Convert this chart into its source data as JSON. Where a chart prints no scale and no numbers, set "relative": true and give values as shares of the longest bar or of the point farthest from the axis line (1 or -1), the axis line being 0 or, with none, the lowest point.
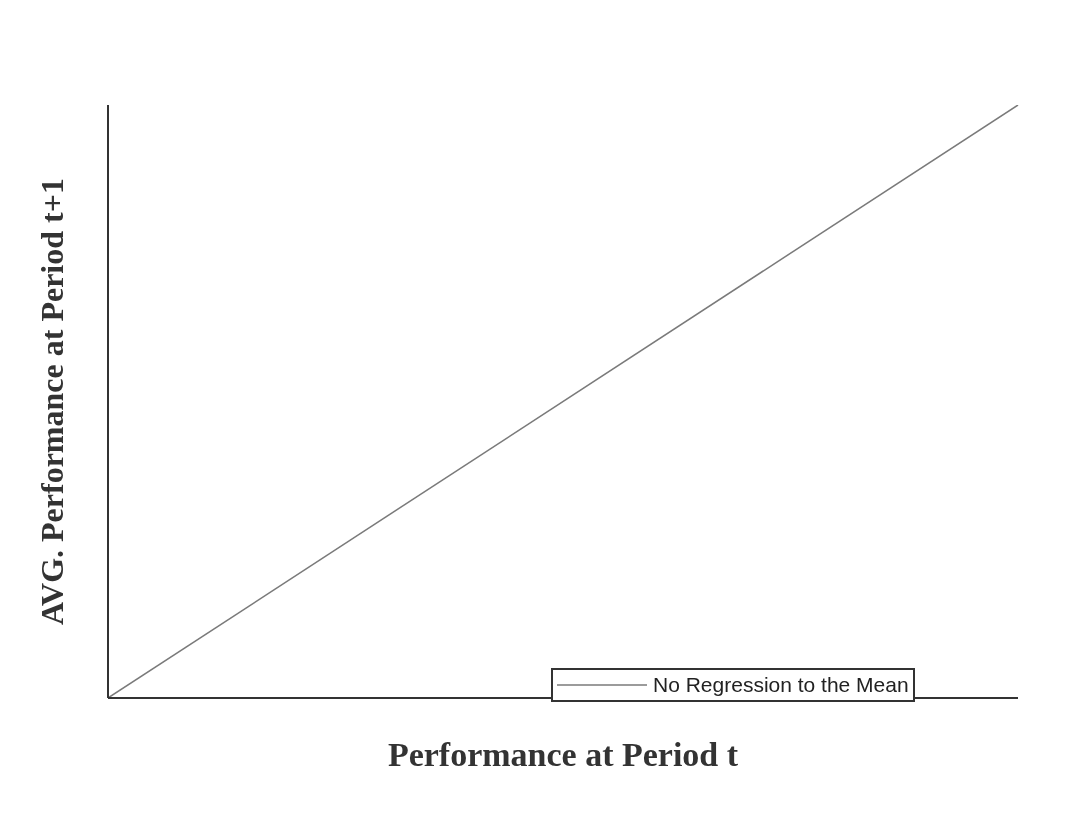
{
  "chart_data": {
    "type": "line",
    "xlabel": "Performance at Period t",
    "ylabel": "AVG. Performance at Period t+1",
    "categories": [
      null,
      null
    ],
    "relative": true,
    "legend": "bottom right",
    "series": [
      {
        "name": "No Regression to the Mean",
        "color": "#7a7a7a",
        "values": [
          0,
          1
        ]
      }
    ]
  }
}
